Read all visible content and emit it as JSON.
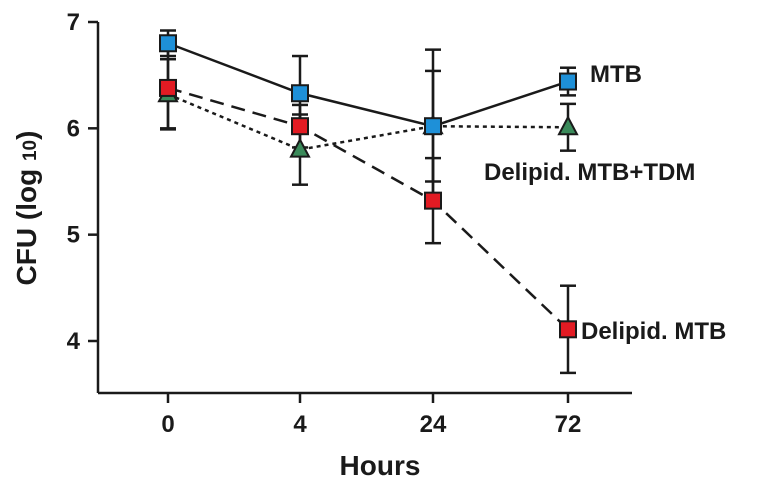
{
  "chart_data": {
    "type": "line",
    "categories": [
      "0",
      "4",
      "24",
      "72"
    ],
    "xlabel": "Hours",
    "ylabel_main": "CFU (log ",
    "ylabel_sub": "10",
    "ylabel_close": ")",
    "ylim": [
      3.5,
      7
    ],
    "yticks": [
      4,
      5,
      6,
      7
    ],
    "series": [
      {
        "name": "MTB",
        "values": [
          6.8,
          6.33,
          6.02,
          6.44
        ],
        "errors": [
          0.12,
          0.35,
          0.72,
          0.13
        ],
        "marker": "square",
        "color": "#1e90d8",
        "line_style": "solid"
      },
      {
        "name": "Delipid. MTB+TDM",
        "values": [
          6.32,
          5.8,
          6.02,
          6.01
        ],
        "errors": [
          0.33,
          0.33,
          0.52,
          0.22
        ],
        "marker": "triangle",
        "color": "#3a8a5a",
        "line_style": "dotted"
      },
      {
        "name": "Delipid. MTB",
        "values": [
          6.38,
          6.02,
          5.32,
          4.11
        ],
        "errors": [
          0.38,
          0.2,
          0.4,
          0.41
        ],
        "marker": "square",
        "color": "#e21b23",
        "line_style": "dashed"
      }
    ]
  }
}
